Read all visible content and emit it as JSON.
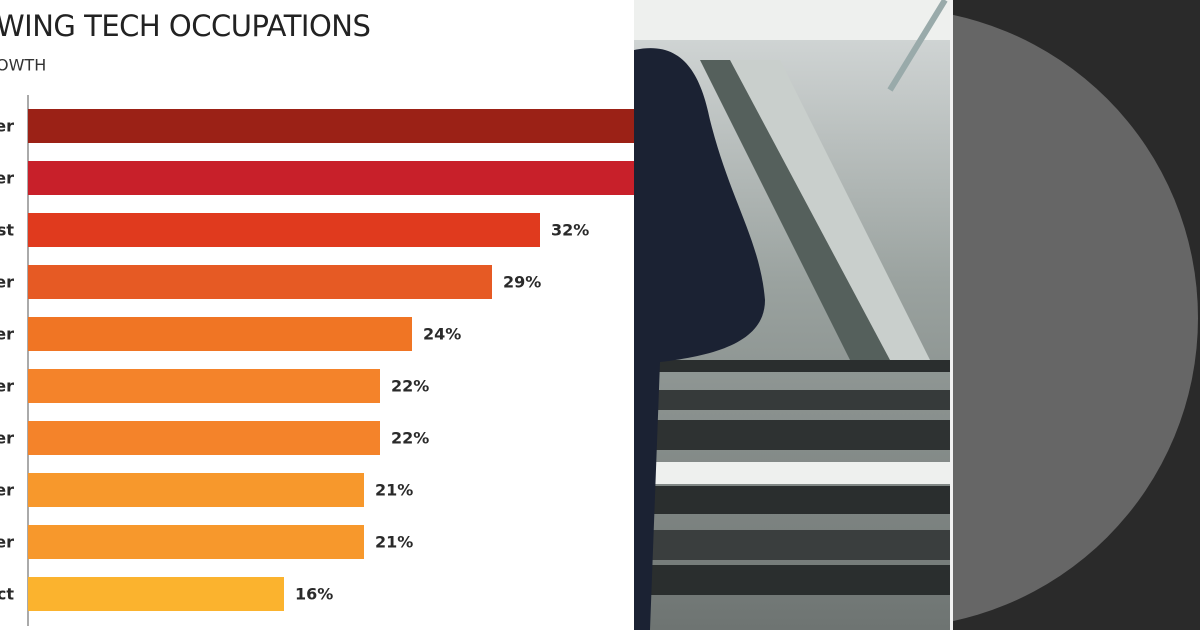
{
  "chart_data": {
    "type": "bar",
    "orientation": "horizontal",
    "title": "WING TECH OCCUPATIONS",
    "subtitle": "OWTH",
    "categories": [
      "er",
      "er",
      "st",
      "er",
      "er",
      "er",
      "er",
      "er",
      "er",
      "ct"
    ],
    "values": [
      38,
      38,
      32,
      29,
      24,
      22,
      22,
      21,
      21,
      16
    ],
    "value_labels": [
      null,
      null,
      "32%",
      "29%",
      "24%",
      "22%",
      "22%",
      "21%",
      "21%",
      "16%"
    ],
    "colors": [
      "#9b2116",
      "#c8202a",
      "#e03a1e",
      "#e65a24",
      "#f07524",
      "#f4832a",
      "#f4832a",
      "#f7982c",
      "#f7982c",
      "#fbb32e"
    ],
    "xlim": [
      0,
      38
    ]
  }
}
